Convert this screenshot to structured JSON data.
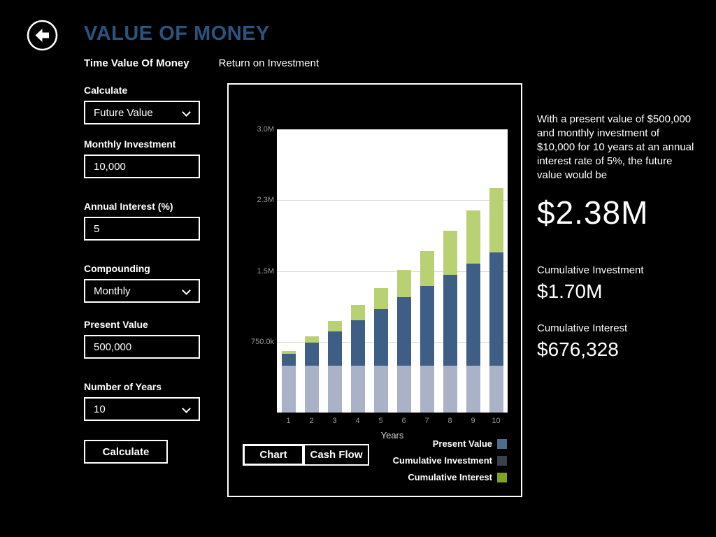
{
  "app": {
    "title": "VALUE OF MONEY"
  },
  "tabs": [
    {
      "label": "Time Value Of Money"
    },
    {
      "label": "Return on Investment"
    }
  ],
  "form": {
    "calculate": {
      "label": "Calculate",
      "value": "Future Value"
    },
    "monthly_investment": {
      "label": "Monthly Investment",
      "value": "10,000"
    },
    "annual_interest": {
      "label": "Annual Interest (%)",
      "value": "5"
    },
    "compounding": {
      "label": "Compounding",
      "value": "Monthly"
    },
    "present_value": {
      "label": "Present Value",
      "value": "500,000"
    },
    "number_of_years": {
      "label": "Number of Years",
      "value": "10"
    },
    "calculate_button": "Calculate"
  },
  "chart_data": {
    "type": "bar",
    "stacked": true,
    "x": [
      1,
      2,
      3,
      4,
      5,
      6,
      7,
      8,
      9,
      10
    ],
    "xlabel": "Years",
    "ylim": [
      0,
      3000000
    ],
    "yticks": [
      {
        "value": 750000,
        "label": "750.0k"
      },
      {
        "value": 1500000,
        "label": "1.5M"
      },
      {
        "value": 2250000,
        "label": "2.3M"
      },
      {
        "value": 3000000,
        "label": "3.0M"
      }
    ],
    "grid": "horizontal",
    "legend_position": "bottom-right",
    "series": [
      {
        "name": "Present Value",
        "color": "#a9b2c6",
        "values": [
          500000,
          500000,
          500000,
          500000,
          500000,
          500000,
          500000,
          500000,
          500000,
          500000
        ]
      },
      {
        "name": "Cumulative Investment",
        "color": "#3f5e85",
        "values": [
          120000,
          240000,
          360000,
          480000,
          600000,
          720000,
          840000,
          960000,
          1080000,
          1200000
        ]
      },
      {
        "name": "Cumulative Interest",
        "color": "#b8d173",
        "values": [
          28370,
          64331,
          108269,
          160596,
          221741,
          292152,
          372304,
          462697,
          563857,
          676328
        ]
      }
    ]
  },
  "chart_controls": {
    "chart_button": "Chart",
    "cashflow_button": "Cash Flow"
  },
  "legend": [
    {
      "label": "Present Value",
      "color": "#4e6c8c"
    },
    {
      "label": "Cumulative Investment",
      "color": "#3a414b"
    },
    {
      "label": "Cumulative Interest",
      "color": "#7fa21f"
    }
  ],
  "results": {
    "summary": "With a present value of $500,000 and monthly investment of $10,000 for 10 years at an annual interest rate of 5%, the future value would be",
    "future_value": "$2.38M",
    "cumulative_investment_label": "Cumulative Investment",
    "cumulative_investment_value": "$1.70M",
    "cumulative_interest_label": "Cumulative Interest",
    "cumulative_interest_value": "$676,328"
  }
}
